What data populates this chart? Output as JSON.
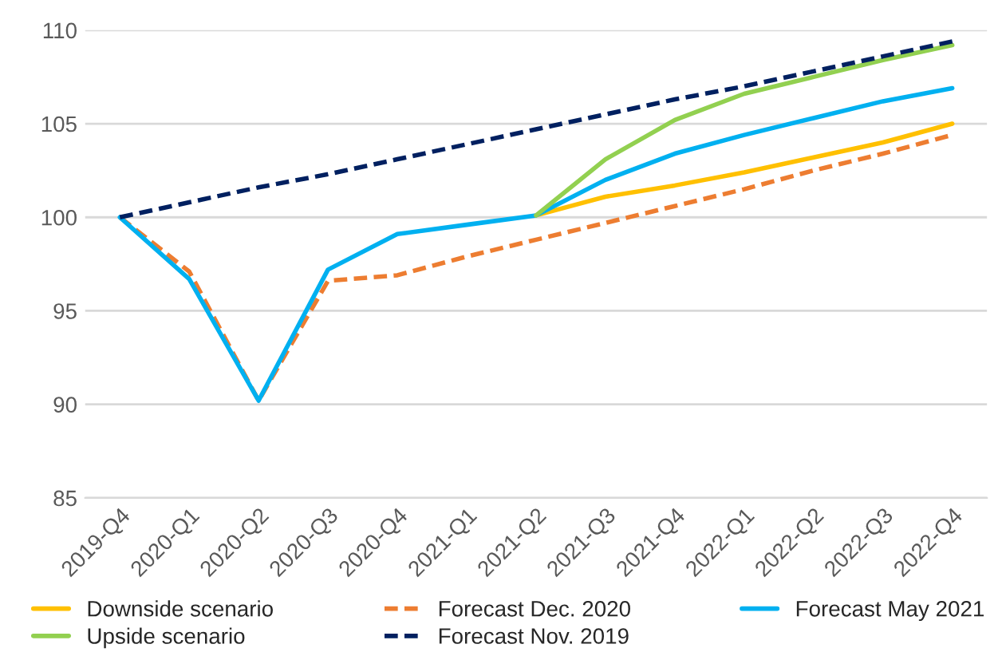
{
  "chart_data": {
    "type": "line",
    "categories": [
      "2019-Q4",
      "2020-Q1",
      "2020-Q2",
      "2020-Q3",
      "2020-Q4",
      "2021-Q1",
      "2021-Q2",
      "2021-Q3",
      "2021-Q4",
      "2022-Q1",
      "2022-Q2",
      "2022-Q3",
      "2022-Q4"
    ],
    "ylim": [
      85,
      110
    ],
    "yticks": [
      85,
      90,
      95,
      100,
      105,
      110
    ],
    "grid": "y",
    "legend": "bottom",
    "series": [
      {
        "name": "Downside scenario",
        "color": "#ffc000",
        "line_style": "solid",
        "values": [
          null,
          null,
          null,
          null,
          null,
          null,
          100.1,
          101.1,
          101.7,
          102.4,
          103.2,
          104.0,
          105.0
        ]
      },
      {
        "name": "Forecast Dec. 2020",
        "color": "#ed7d31",
        "line_style": "dashed",
        "values": [
          100,
          97.1,
          90.2,
          96.6,
          96.9,
          97.9,
          98.8,
          99.7,
          100.6,
          101.5,
          102.5,
          103.4,
          104.4
        ]
      },
      {
        "name": "Forecast May 2021",
        "color": "#00b0f0",
        "line_style": "solid",
        "values": [
          100,
          96.7,
          90.2,
          97.2,
          99.1,
          99.6,
          100.1,
          102.0,
          103.4,
          104.4,
          105.3,
          106.2,
          106.9
        ]
      },
      {
        "name": "Upside scenario",
        "color": "#92d050",
        "line_style": "solid",
        "values": [
          null,
          null,
          null,
          null,
          null,
          null,
          100.1,
          103.1,
          105.2,
          106.6,
          107.5,
          108.4,
          109.2
        ]
      },
      {
        "name": "Forecast Nov. 2019",
        "color": "#002060",
        "line_style": "dashed",
        "values": [
          100,
          100.8,
          101.6,
          102.3,
          103.1,
          103.9,
          104.7,
          105.5,
          106.3,
          107.0,
          107.8,
          108.6,
          109.4
        ]
      }
    ]
  }
}
